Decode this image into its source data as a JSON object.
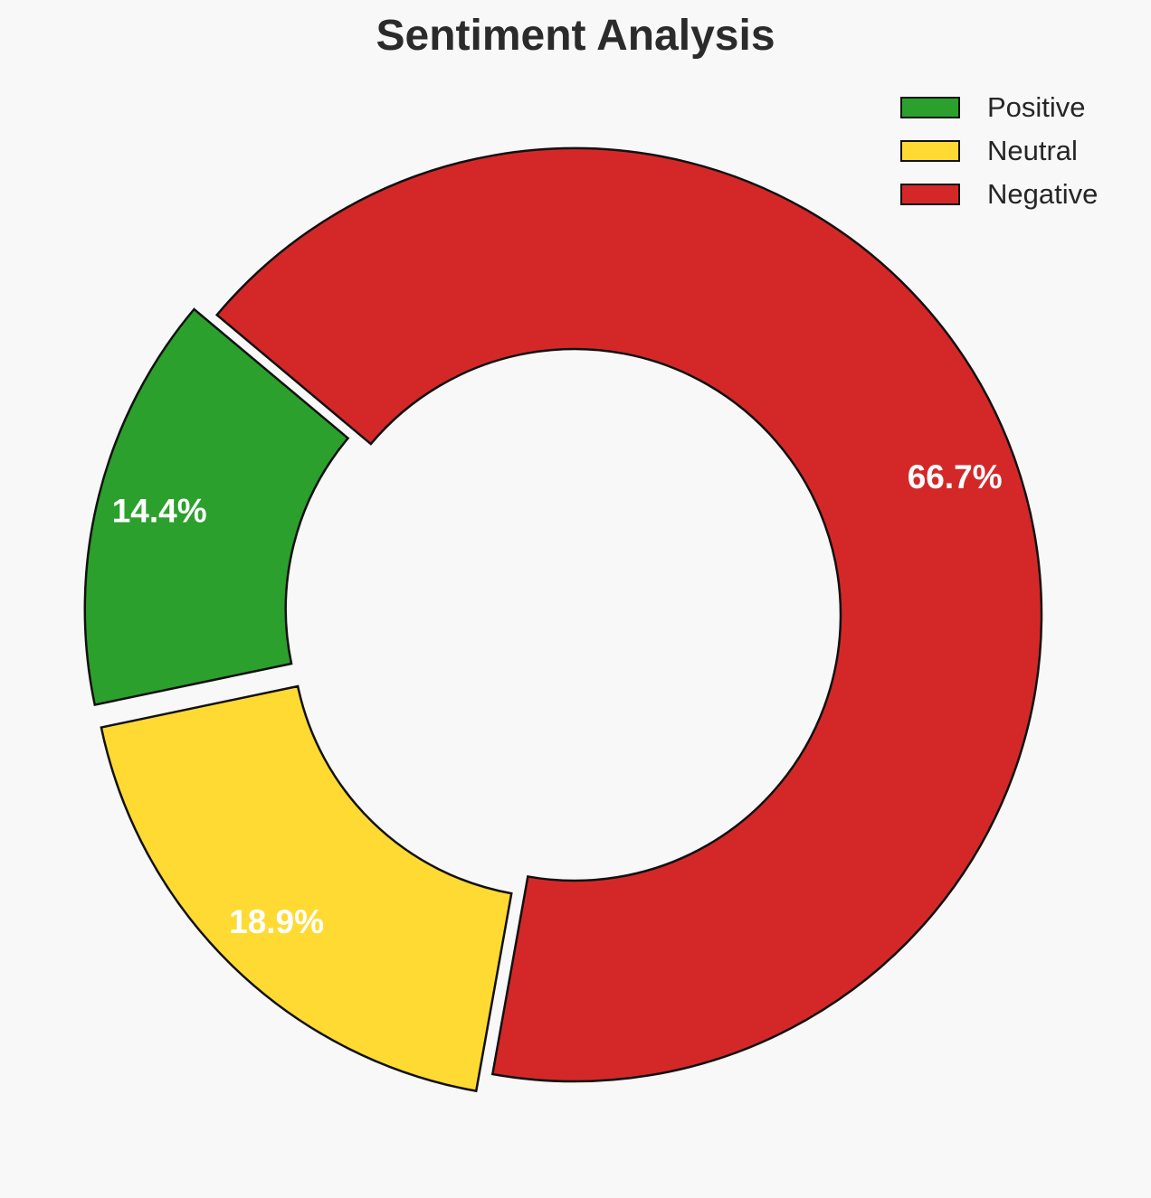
{
  "chart_data": {
    "type": "pie",
    "variant": "donut",
    "title": "Sentiment Analysis",
    "categories": [
      "Positive",
      "Neutral",
      "Negative"
    ],
    "values": [
      14.4,
      18.9,
      66.7
    ],
    "labels": [
      "14.4%",
      "18.9%",
      "66.7%"
    ],
    "colors": [
      "#2ca02c",
      "#ffda33",
      "#d42828"
    ],
    "exploded": [
      true,
      true,
      false
    ],
    "legend_position": "top-right",
    "grid": false
  }
}
